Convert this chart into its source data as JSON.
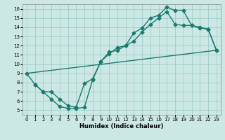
{
  "xlabel": "Humidex (Indice chaleur)",
  "bg_color": "#cce8e4",
  "grid_color": "#a0ccc8",
  "line_color": "#1a7a6e",
  "xlim": [
    -0.5,
    23.5
  ],
  "ylim": [
    4.5,
    16.5
  ],
  "xticks": [
    0,
    1,
    2,
    3,
    4,
    5,
    6,
    7,
    8,
    9,
    10,
    11,
    12,
    13,
    14,
    15,
    16,
    17,
    18,
    19,
    20,
    21,
    22,
    23
  ],
  "yticks": [
    5,
    6,
    7,
    8,
    9,
    10,
    11,
    12,
    13,
    14,
    15,
    16
  ],
  "line1_x": [
    0,
    1,
    2,
    3,
    4,
    5,
    6,
    7,
    8,
    9,
    10,
    11,
    12,
    13,
    14,
    15,
    16,
    17,
    18,
    19,
    20,
    21,
    22,
    23
  ],
  "line1_y": [
    9.0,
    7.8,
    7.0,
    6.2,
    5.4,
    5.2,
    5.2,
    5.3,
    8.3,
    10.3,
    11.1,
    11.8,
    12.0,
    13.4,
    13.9,
    15.0,
    15.3,
    16.2,
    15.8,
    15.8,
    14.2,
    13.9,
    13.8,
    11.5
  ],
  "line2_x": [
    1,
    2,
    3,
    4,
    5,
    6,
    7,
    8,
    9,
    10,
    11,
    12,
    13,
    14,
    15,
    16,
    17,
    18,
    19,
    20,
    21,
    22,
    23
  ],
  "line2_y": [
    7.8,
    7.0,
    7.0,
    6.2,
    5.5,
    5.3,
    7.9,
    8.4,
    10.3,
    11.3,
    11.5,
    12.0,
    12.5,
    13.5,
    14.3,
    15.0,
    15.7,
    14.3,
    14.2,
    14.2,
    14.0,
    13.8,
    11.5
  ],
  "line3_x": [
    0,
    23
  ],
  "line3_y": [
    9.0,
    11.5
  ],
  "marker": "D",
  "markersize": 2.5,
  "linewidth": 1.0
}
